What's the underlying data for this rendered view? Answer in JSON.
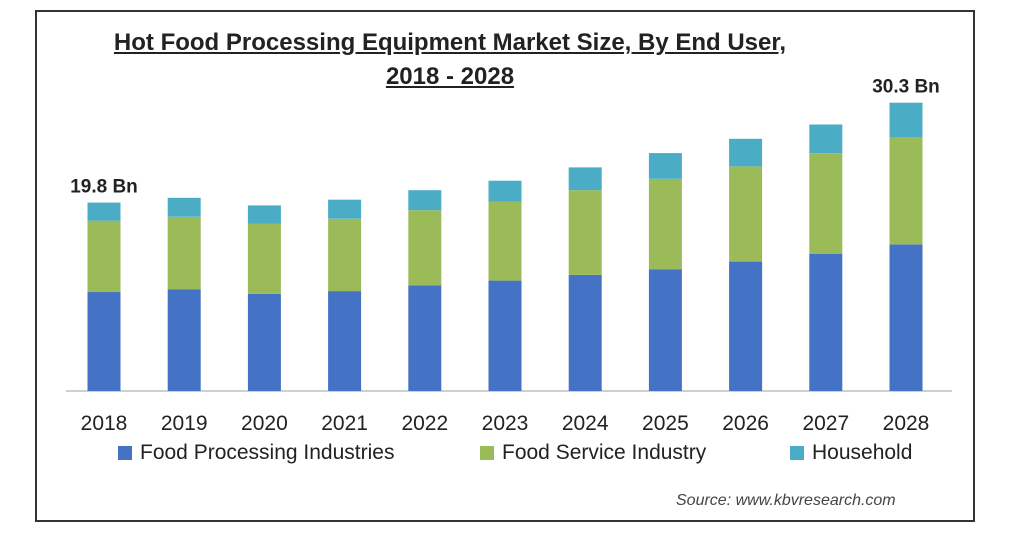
{
  "chart_data": {
    "type": "bar",
    "stacked": true,
    "title": "Hot Food Processing Equipment Market Size, By End User, 2018 - 2028",
    "categories": [
      "2018",
      "2019",
      "2020",
      "2021",
      "2022",
      "2023",
      "2024",
      "2025",
      "2026",
      "2027",
      "2028"
    ],
    "series": [
      {
        "name": "Food Processing Industries",
        "color": "#4472C4",
        "values": [
          10.4,
          10.7,
          10.2,
          10.5,
          11.1,
          11.6,
          12.2,
          12.8,
          13.6,
          14.4,
          15.4
        ]
      },
      {
        "name": "Food Service Industry",
        "color": "#9BBB59",
        "values": [
          7.5,
          7.6,
          7.4,
          7.6,
          7.9,
          8.3,
          8.9,
          9.5,
          10.0,
          10.6,
          11.3
        ]
      },
      {
        "name": "Household",
        "color": "#4BACC6",
        "values": [
          1.9,
          2.0,
          1.9,
          2.0,
          2.1,
          2.2,
          2.4,
          2.7,
          2.9,
          3.0,
          3.6
        ]
      }
    ],
    "data_labels": [
      {
        "category": "2018",
        "text": "19.8 Bn"
      },
      {
        "category": "2028",
        "text": "30.3 Bn"
      }
    ],
    "ylim": [
      0,
      31
    ],
    "grid": false,
    "legend_position": "bottom",
    "source": "Source:  www.kbvresearch.com"
  }
}
